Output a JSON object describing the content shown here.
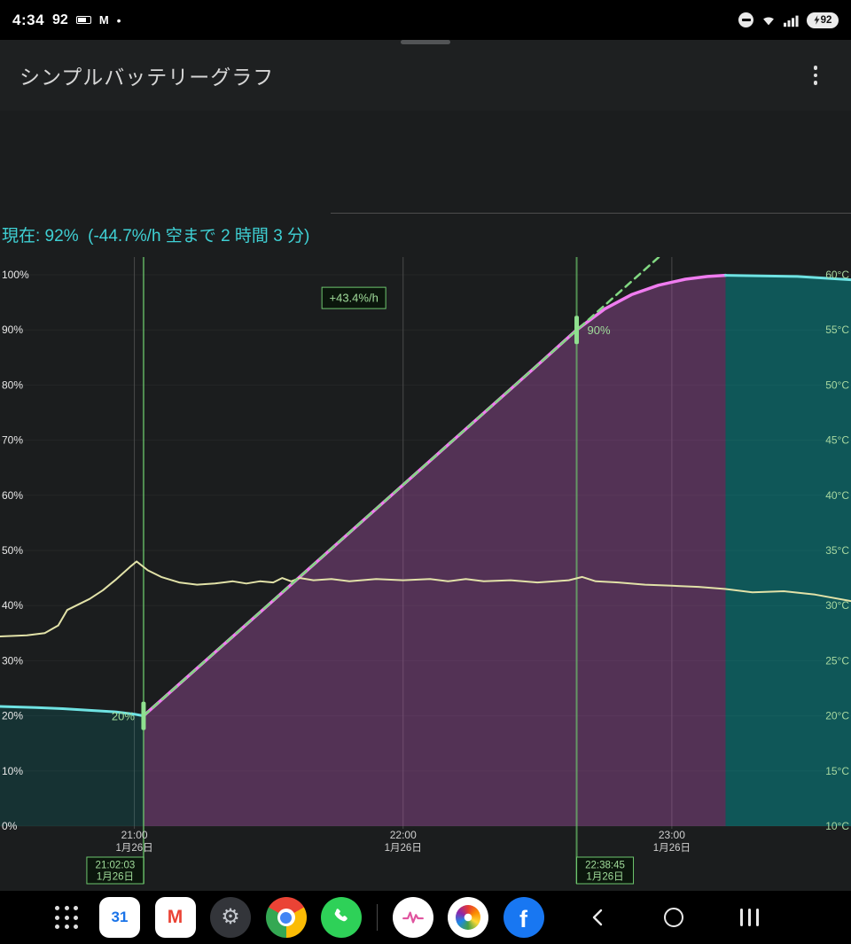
{
  "status_bar": {
    "time": "4:34",
    "notification_count": "92",
    "more_dot": "•",
    "gmail_glyph": "M",
    "battery_pill": "92"
  },
  "app": {
    "title": "シンプルバッテリーグラフ",
    "status_line": "現在: 92%  (-44.7%/h 空まで 2 時間 3 分)"
  },
  "nav": {
    "calendar_day": "31",
    "gmail_letter": "M",
    "settings_glyph": "⚙",
    "facebook_letter": "f"
  },
  "chart_data": {
    "type": "area",
    "title": "battery percent and temperature over time",
    "x_minutes_range": [
      0,
      190
    ],
    "x_ticks": [
      {
        "minute": 30,
        "label": "21:00",
        "sub": "1月26日"
      },
      {
        "minute": 90,
        "label": "22:00",
        "sub": "1月26日"
      },
      {
        "minute": 150,
        "label": "23:00",
        "sub": "1月26日"
      }
    ],
    "y_left": {
      "min": 0,
      "max": 100,
      "step": 10,
      "suffix": "%",
      "tick_labels": [
        "0%",
        "10%",
        "20%",
        "30%",
        "40%",
        "50%",
        "60%",
        "70%",
        "80%",
        "90%",
        "100%"
      ]
    },
    "y_right": {
      "min": 10,
      "max": 60,
      "step": 5,
      "suffix": "°C",
      "tick_labels": [
        "10°C",
        "15°C",
        "20°C",
        "25°C",
        "30°C",
        "35°C",
        "40°C",
        "45°C",
        "50°C",
        "55°C",
        "60°C"
      ]
    },
    "series": [
      {
        "name": "battery-before-charge",
        "axis": "left",
        "color": "#6fe3e3",
        "width": 3,
        "fill": "rgba(0,160,160,0.16)",
        "points": [
          [
            0,
            21.7
          ],
          [
            8,
            21.5
          ],
          [
            14,
            21.3
          ],
          [
            20,
            21.0
          ],
          [
            26,
            20.7
          ],
          [
            30,
            20.3
          ],
          [
            32.05,
            20.0
          ]
        ]
      },
      {
        "name": "battery-charging",
        "axis": "left",
        "color": "#f07cf0",
        "width": 3.5,
        "fill": "rgba(162,82,162,0.42)",
        "points": [
          [
            32.05,
            20
          ],
          [
            60,
            40.2
          ],
          [
            90,
            61.9
          ],
          [
            120,
            83.6
          ],
          [
            128.75,
            90
          ],
          [
            135,
            93.8
          ],
          [
            141,
            96.4
          ],
          [
            147,
            98.1
          ],
          [
            153,
            99.2
          ],
          [
            158,
            99.7
          ],
          [
            162,
            99.9
          ]
        ]
      },
      {
        "name": "battery-after-charge",
        "axis": "left",
        "color": "#6fe3e3",
        "width": 3,
        "fill": "rgba(0,170,170,0.42)",
        "points": [
          [
            162,
            99.9
          ],
          [
            170,
            99.8
          ],
          [
            178,
            99.7
          ],
          [
            184,
            99.4
          ],
          [
            190,
            99.1
          ]
        ]
      },
      {
        "name": "temperature",
        "axis": "right",
        "color": "#e2e2a8",
        "width": 2,
        "points": [
          [
            0,
            27.2
          ],
          [
            6,
            27.3
          ],
          [
            10,
            27.5
          ],
          [
            13,
            28.2
          ],
          [
            15,
            29.6
          ],
          [
            17,
            30.0
          ],
          [
            20,
            30.6
          ],
          [
            23,
            31.4
          ],
          [
            26,
            32.4
          ],
          [
            29,
            33.5
          ],
          [
            30.5,
            34.0
          ],
          [
            33,
            33.2
          ],
          [
            36,
            32.6
          ],
          [
            40,
            32.1
          ],
          [
            44,
            31.9
          ],
          [
            48,
            32.0
          ],
          [
            52,
            32.2
          ],
          [
            55,
            32.0
          ],
          [
            58,
            32.2
          ],
          [
            61,
            32.1
          ],
          [
            63,
            32.5
          ],
          [
            65,
            32.2
          ],
          [
            67,
            32.5
          ],
          [
            70,
            32.3
          ],
          [
            74,
            32.4
          ],
          [
            78,
            32.2
          ],
          [
            84,
            32.4
          ],
          [
            90,
            32.3
          ],
          [
            96,
            32.4
          ],
          [
            100,
            32.2
          ],
          [
            104,
            32.4
          ],
          [
            108,
            32.2
          ],
          [
            114,
            32.3
          ],
          [
            120,
            32.1
          ],
          [
            124,
            32.2
          ],
          [
            127,
            32.3
          ],
          [
            130,
            32.6
          ],
          [
            133,
            32.2
          ],
          [
            138,
            32.1
          ],
          [
            144,
            31.9
          ],
          [
            150,
            31.8
          ],
          [
            156,
            31.7
          ],
          [
            162,
            31.5
          ],
          [
            168,
            31.2
          ],
          [
            175,
            31.3
          ],
          [
            182,
            31.0
          ],
          [
            190,
            30.4
          ]
        ]
      },
      {
        "name": "charge-trend",
        "axis": "left",
        "color": "#82d982",
        "width": 2.5,
        "dash": "8 6",
        "points": [
          [
            32.05,
            20
          ],
          [
            147.5,
            103.5
          ]
        ]
      }
    ],
    "trend_label": {
      "text": "+43.4%/h",
      "x_minute": 79,
      "y_percent": 95.8
    },
    "events": [
      {
        "minute": 32.05,
        "percent": 20,
        "marker_label": "20%",
        "label_side": "left",
        "time": "21:02:03",
        "date": "1月26日",
        "box_side": "left"
      },
      {
        "minute": 128.75,
        "percent": 90,
        "marker_label": "90%",
        "label_side": "right",
        "time": "22:38:45",
        "date": "1月26日",
        "box_side": "right"
      }
    ],
    "colors": {
      "grid": "#4a4a4a",
      "h_grid": "rgba(255,255,255,0.045)",
      "event_line": "rgba(110,205,110,0.65)",
      "marker": "#8fe08f",
      "label_green": "#a0dc9a",
      "axis_text_left": "#e8e8e8",
      "axis_text_right": "#a8d8a0",
      "axis_text_x": "#cfcfcf",
      "box_fill": "rgba(10,22,10,0.9)",
      "box_stroke": "#6ec76e"
    }
  }
}
